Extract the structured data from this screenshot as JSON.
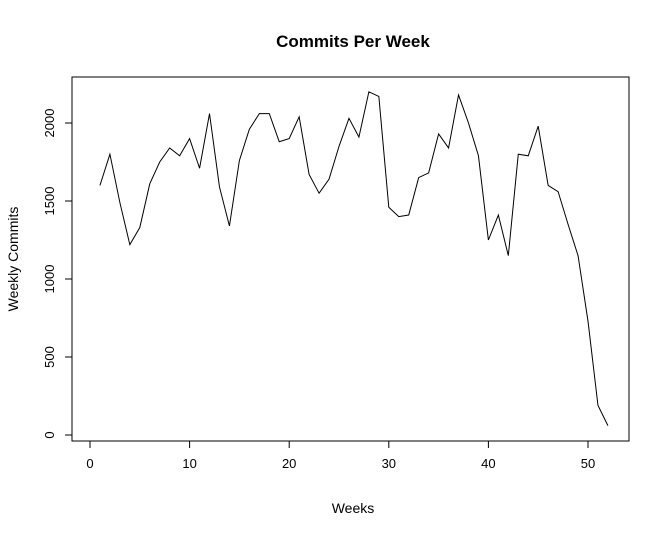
{
  "chart_data": {
    "type": "line",
    "title": "Commits Per Week",
    "xlabel": "Weeks",
    "ylabel": "Weekly Commits",
    "xlim": [
      0,
      52
    ],
    "ylim": [
      0,
      2200
    ],
    "xticks": [
      0,
      10,
      20,
      30,
      40,
      50
    ],
    "yticks": [
      0,
      500,
      1000,
      1500,
      2000
    ],
    "grid": false,
    "series": [
      {
        "x": [
          1,
          2,
          3,
          4,
          5,
          6,
          7,
          8,
          9,
          10,
          11,
          12,
          13,
          14,
          15,
          16,
          17,
          18,
          19,
          20,
          21,
          22,
          23,
          24,
          25,
          26,
          27,
          28,
          29,
          30,
          31,
          32,
          33,
          34,
          35,
          36,
          37,
          38,
          39,
          40,
          41,
          42,
          43,
          44,
          45,
          46,
          47,
          48,
          49,
          50,
          51,
          52
        ],
        "values": [
          1600,
          1800,
          1490,
          1220,
          1330,
          1610,
          1750,
          1840,
          1790,
          1900,
          1710,
          2060,
          1590,
          1340,
          1760,
          1960,
          2060,
          2060,
          1880,
          1900,
          2040,
          1670,
          1550,
          1640,
          1850,
          2030,
          1910,
          2200,
          2170,
          1460,
          1400,
          1410,
          1650,
          1680,
          1930,
          1840,
          2180,
          2000,
          1790,
          1250,
          1410,
          1150,
          1800,
          1790,
          1980,
          1600,
          1560,
          1350,
          1150,
          730,
          190,
          60
        ]
      }
    ]
  }
}
